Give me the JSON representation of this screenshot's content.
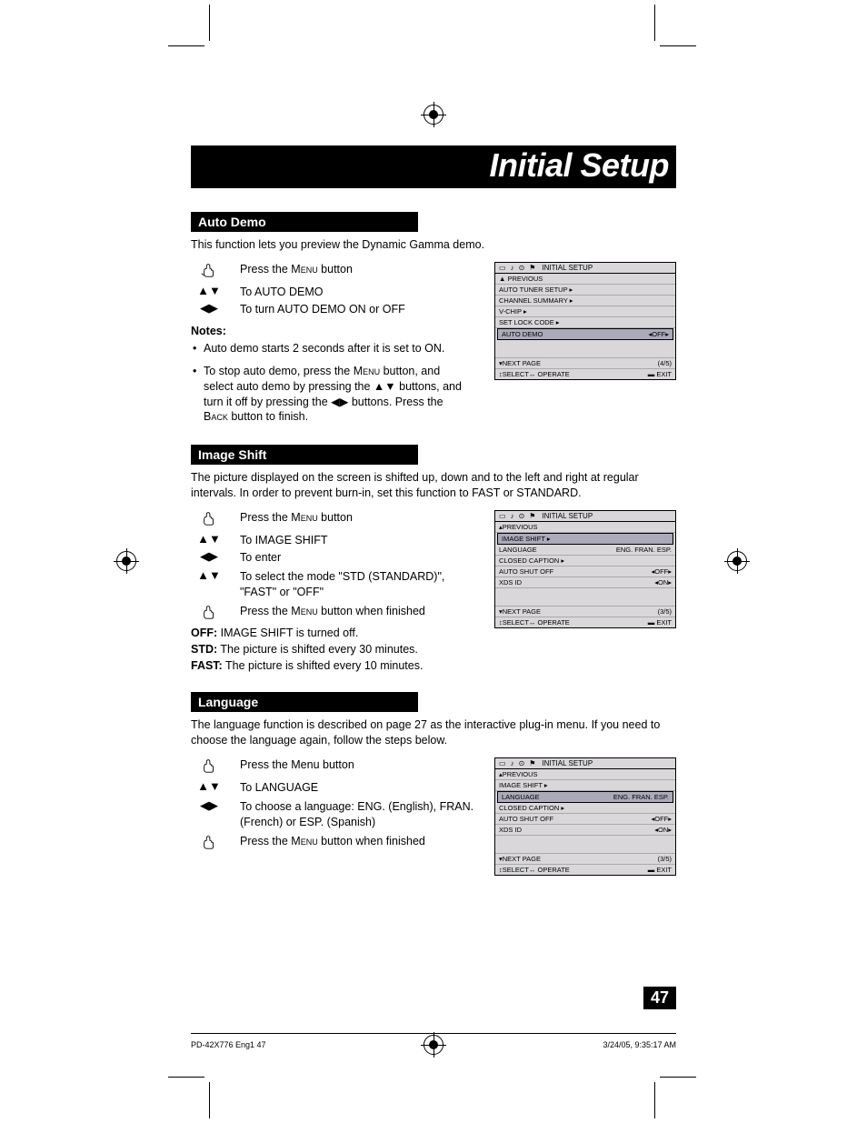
{
  "page": {
    "title": "Initial Setup",
    "page_number": "47",
    "footer_left": "PD-42X776 Eng1   47",
    "footer_right": "3/24/05, 9:35:17 AM"
  },
  "sections": {
    "auto_demo": {
      "header": "Auto Demo",
      "intro": "This function lets you preview the Dynamic Gamma demo.",
      "step1": "Press the MENU button",
      "step2a": "To AUTO DEMO",
      "step2b": "To turn AUTO DEMO ON or OFF",
      "notes_label": "Notes:",
      "note1": "Auto demo starts 2 seconds after it is set to ON.",
      "note2_a": "To stop auto demo, press the ",
      "note2_b": " button, and select auto demo by pressing the ",
      "note2_c": " buttons, and turn it off by pressing the ",
      "note2_d": " buttons. Press the ",
      "note2_e": " button to finish.",
      "menu_sc": "Menu",
      "back_sc": "Back",
      "osd": {
        "title": "INITIAL SETUP",
        "previous": "▲ PREVIOUS",
        "rows": [
          {
            "label": "AUTO TUNER SETUP",
            "suffix": "▸",
            "val": ""
          },
          {
            "label": "CHANNEL SUMMARY",
            "suffix": "▸",
            "val": ""
          },
          {
            "label": "V-CHIP",
            "suffix": "▸",
            "val": ""
          },
          {
            "label": "SET LOCK CODE",
            "suffix": "▸",
            "val": ""
          },
          {
            "label": "AUTO DEMO",
            "suffix": "",
            "val": "◂OFF▸",
            "highlight": true
          }
        ],
        "next": "▾NEXT PAGE",
        "page": "(4/5)",
        "select": "↕SELECT↔ OPERATE",
        "exit": "▬ EXIT"
      }
    },
    "image_shift": {
      "header": "Image Shift",
      "intro": "The picture displayed on the screen is shifted up, down and to the left and right at regular intervals. In order to prevent burn-in, set this function to FAST or STANDARD.",
      "step1": "Press the MENU button",
      "step2a": "To IMAGE SHIFT",
      "step2b": "To enter",
      "step3": "To select the mode \"STD (STANDARD)\", \"FAST\" or \"OFF\"",
      "step4": "Press the MENU button when finished",
      "def_off": "IMAGE SHIFT is turned off.",
      "def_std": "The picture is shifted every 30 minutes.",
      "def_fast": "The picture is shifted every 10 minutes.",
      "osd": {
        "title": "INITIAL SETUP",
        "previous": "▴PREVIOUS",
        "rows": [
          {
            "label": "IMAGE SHIFT",
            "suffix": "▸",
            "val": "",
            "highlight": true
          },
          {
            "label": "LANGUAGE",
            "suffix": "",
            "val": "ENG. FRAN. ESP."
          },
          {
            "label": "CLOSED CAPTION",
            "suffix": "▸",
            "val": ""
          },
          {
            "label": "AUTO SHUT OFF",
            "suffix": "",
            "val": "◂OFF▸"
          },
          {
            "label": "XDS ID",
            "suffix": "",
            "val": "◂ON▸"
          }
        ],
        "next": "▾NEXT PAGE",
        "page": "(3/5)",
        "select": "↕SELECT↔ OPERATE",
        "exit": "▬ EXIT"
      }
    },
    "language": {
      "header": "Language",
      "intro": "The language function is described on page 27 as the interactive plug-in menu. If you need to choose the language again, follow the steps below.",
      "step1": "Press the Menu button",
      "step2": "To LANGUAGE",
      "step3": "To choose a language: ENG. (English), FRAN. (French) or ESP. (Spanish)",
      "step4": "Press the MENU button when finished",
      "osd": {
        "title": "INITIAL SETUP",
        "previous": "▴PREVIOUS",
        "rows": [
          {
            "label": "IMAGE SHIFT",
            "suffix": "▸",
            "val": ""
          },
          {
            "label": "LANGUAGE",
            "suffix": "",
            "val": "ENG. FRAN. ESP.",
            "highlight": true
          },
          {
            "label": "CLOSED CAPTION",
            "suffix": "▸",
            "val": ""
          },
          {
            "label": "AUTO SHUT OFF",
            "suffix": "",
            "val": "◂OFF▸"
          },
          {
            "label": "XDS ID",
            "suffix": "",
            "val": "◂ON▸"
          }
        ],
        "next": "▾NEXT PAGE",
        "page": "(3/5)",
        "select": "↕SELECT↔ OPERATE",
        "exit": "▬ EXIT"
      }
    }
  },
  "icons": {
    "updown": "▲▼",
    "leftright": "◀▶",
    "updown_small": "▲▼",
    "leftright_small": "◀▶"
  },
  "colors": {
    "black": "#000000",
    "white": "#ffffff",
    "osd_bg": "#d9d7da"
  }
}
